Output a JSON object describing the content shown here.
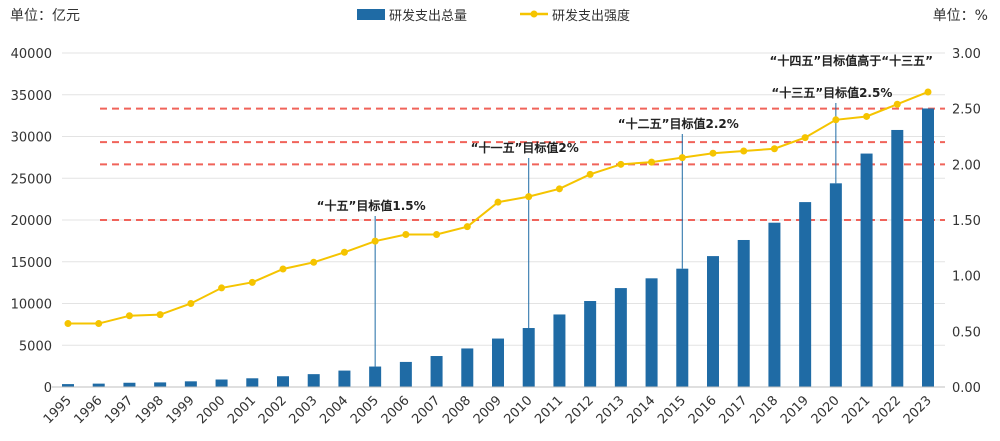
{
  "chart_data": {
    "type": "bar+line",
    "left_unit": "单位：亿元",
    "right_unit": "单位：%",
    "legend_position": "top",
    "categories": [
      "1995",
      "1996",
      "1997",
      "1998",
      "1999",
      "2000",
      "2001",
      "2002",
      "2003",
      "2004",
      "2005",
      "2006",
      "2007",
      "2008",
      "2009",
      "2010",
      "2011",
      "2012",
      "2013",
      "2014",
      "2015",
      "2016",
      "2017",
      "2018",
      "2019",
      "2020",
      "2021",
      "2022",
      "2023"
    ],
    "series": [
      {
        "name": "研发支出总量",
        "type": "bar",
        "axis": "left",
        "color": "#1F6BA5",
        "values": [
          349,
          404,
          509,
          551,
          679,
          896,
          1043,
          1288,
          1540,
          1966,
          2450,
          3003,
          3710,
          4616,
          5802,
          7063,
          8687,
          10298,
          11847,
          13016,
          14170,
          15677,
          17606,
          19678,
          22144,
          24393,
          27956,
          30783,
          33357
        ]
      },
      {
        "name": "研发支出强度",
        "type": "line",
        "axis": "right",
        "color": "#F5C400",
        "values": [
          0.57,
          0.57,
          0.64,
          0.65,
          0.75,
          0.89,
          0.94,
          1.06,
          1.12,
          1.21,
          1.31,
          1.37,
          1.37,
          1.44,
          1.66,
          1.71,
          1.78,
          1.91,
          2.0,
          2.02,
          2.06,
          2.1,
          2.12,
          2.14,
          2.24,
          2.4,
          2.43,
          2.54,
          2.65
        ]
      }
    ],
    "left_axis": {
      "range": [
        0,
        40000
      ],
      "ticks": [
        "0",
        "5000",
        "10000",
        "15000",
        "20000",
        "25000",
        "30000",
        "35000",
        "40000"
      ]
    },
    "right_axis": {
      "range": [
        0,
        3
      ],
      "ticks": [
        "0.00",
        "0.50",
        "1.00",
        "1.50",
        "2.00",
        "2.50",
        "3.00"
      ]
    },
    "grid": true,
    "reference_lines": [
      {
        "value": 1.5,
        "color": "#F0635A"
      },
      {
        "value": 2.0,
        "color": "#F0635A"
      },
      {
        "value": 2.2,
        "color": "#F0635A"
      },
      {
        "value": 2.5,
        "color": "#F0635A"
      }
    ],
    "annotations": [
      {
        "year": "2005",
        "text": "“十五”目标值1.5%"
      },
      {
        "year": "2010",
        "text": "“十一五”目标值2%"
      },
      {
        "year": "2015",
        "text": "“十二五”目标值2.2%"
      },
      {
        "year": "2020",
        "text": "“十三五”目标值2.5%"
      },
      {
        "year": "2023",
        "text": "“十四五”目标值高于“十三五”"
      }
    ]
  }
}
